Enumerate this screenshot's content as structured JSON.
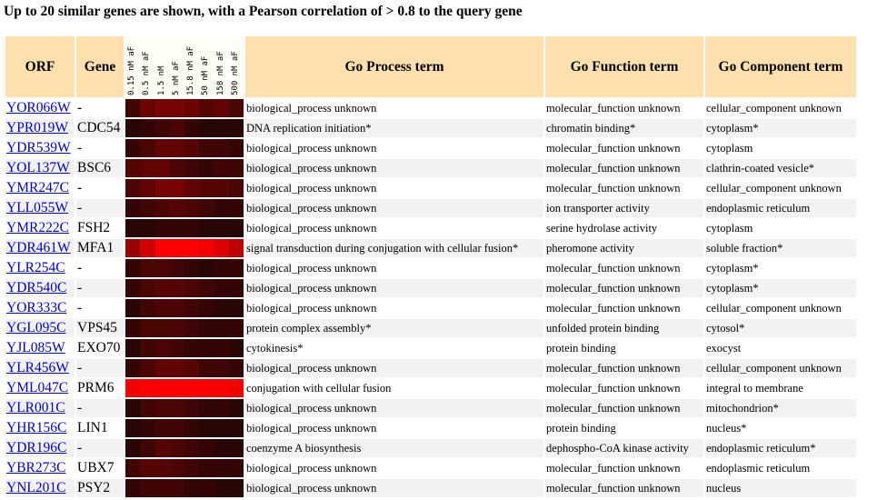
{
  "title": "Up to 20 similar genes are shown, with a Pearson correlation of > 0.8 to the query gene",
  "headers": {
    "orf": "ORF",
    "gene": "Gene",
    "process": "Go Process term",
    "function": "Go Function term",
    "component": "Go Component term"
  },
  "concentrations": [
    "0.15 nM aF",
    "0.5 nM aF",
    "1.5 nM",
    "5 nM aF",
    "15.8 nM aF",
    "50 nM aF",
    "158 nM aF",
    "500 nM aF"
  ],
  "rows": [
    {
      "orf": "YOR066W",
      "gene": "-",
      "process": "biological_process unknown",
      "function": "molecular_function unknown",
      "component": "cellular_component unknown",
      "levels": [
        0.15,
        0.35,
        0.4,
        0.4,
        0.35,
        0.25,
        0.3,
        0.2
      ]
    },
    {
      "orf": "YPR019W",
      "gene": "CDC54",
      "process": "DNA replication initiation*",
      "function": "chromatin binding*",
      "component": "cytoplasm*",
      "levels": [
        0.05,
        0.1,
        0.15,
        0.2,
        0.1,
        0.05,
        0.05,
        0.05
      ]
    },
    {
      "orf": "YDR539W",
      "gene": "-",
      "process": "biological_process unknown",
      "function": "molecular_function unknown",
      "component": "cytoplasm",
      "levels": [
        0.1,
        0.2,
        0.3,
        0.3,
        0.25,
        0.15,
        0.15,
        0.1
      ]
    },
    {
      "orf": "YOL137W",
      "gene": "BSC6",
      "process": "biological_process unknown",
      "function": "molecular_function unknown",
      "component": "clathrin-coated vesicle*",
      "levels": [
        0.25,
        0.3,
        0.3,
        0.2,
        0.15,
        0.1,
        0.15,
        0.15
      ]
    },
    {
      "orf": "YMR247C",
      "gene": "-",
      "process": "biological_process unknown",
      "function": "molecular_function unknown",
      "component": "cellular_component unknown",
      "levels": [
        0.2,
        0.3,
        0.4,
        0.4,
        0.3,
        0.25,
        0.25,
        0.2
      ]
    },
    {
      "orf": "YLL055W",
      "gene": "-",
      "process": "biological_process unknown",
      "function": "ion transporter activity",
      "component": "endoplasmic reticulum",
      "levels": [
        0.1,
        0.15,
        0.2,
        0.25,
        0.2,
        0.15,
        0.1,
        0.1
      ]
    },
    {
      "orf": "YMR222C",
      "gene": "FSH2",
      "process": "biological_process unknown",
      "function": "serine hydrolase activity",
      "component": "cytoplasm",
      "levels": [
        0.05,
        0.05,
        0.1,
        0.1,
        0.1,
        0.05,
        0.05,
        0.05
      ]
    },
    {
      "orf": "YDR461W",
      "gene": "MFA1",
      "process": "signal transduction during conjugation with cellular fusion*",
      "function": "pheromone activity",
      "component": "soluble fraction*",
      "levels": [
        0.55,
        0.8,
        1.0,
        1.0,
        1.0,
        0.95,
        0.85,
        0.7
      ]
    },
    {
      "orf": "YLR254C",
      "gene": "-",
      "process": "biological_process unknown",
      "function": "molecular_function unknown",
      "component": "cytoplasm*",
      "levels": [
        0.1,
        0.2,
        0.2,
        0.15,
        0.1,
        0.05,
        0.1,
        0.1
      ]
    },
    {
      "orf": "YDR540C",
      "gene": "-",
      "process": "biological_process unknown",
      "function": "molecular_function unknown",
      "component": "cytoplasm*",
      "levels": [
        0.1,
        0.2,
        0.25,
        0.25,
        0.2,
        0.15,
        0.1,
        0.1
      ]
    },
    {
      "orf": "YOR333C",
      "gene": "-",
      "process": "biological_process unknown",
      "function": "molecular_function unknown",
      "component": "cellular_component unknown",
      "levels": [
        0.05,
        0.15,
        0.2,
        0.2,
        0.15,
        0.1,
        0.05,
        0.05
      ]
    },
    {
      "orf": "YGL095C",
      "gene": "VPS45",
      "process": "protein complex assembly*",
      "function": "unfolded protein binding",
      "component": "cytosol*",
      "levels": [
        0.1,
        0.2,
        0.2,
        0.2,
        0.15,
        0.1,
        0.1,
        0.1
      ]
    },
    {
      "orf": "YJL085W",
      "gene": "EXO70",
      "process": "cytokinesis*",
      "function": "protein binding",
      "component": "exocyst",
      "levels": [
        0.05,
        0.15,
        0.2,
        0.15,
        0.1,
        0.1,
        0.1,
        0.05
      ]
    },
    {
      "orf": "YLR456W",
      "gene": "-",
      "process": "biological_process unknown",
      "function": "molecular_function unknown",
      "component": "cellular_component unknown",
      "levels": [
        0.1,
        0.2,
        0.3,
        0.3,
        0.25,
        0.15,
        0.15,
        0.1
      ]
    },
    {
      "orf": "YML047C",
      "gene": "PRM6",
      "process": "conjugation with cellular fusion",
      "function": "molecular_function unknown",
      "component": "integral to membrane",
      "levels": [
        0.95,
        1.0,
        1.0,
        1.0,
        1.0,
        1.0,
        1.0,
        0.95
      ]
    },
    {
      "orf": "YLR001C",
      "gene": "-",
      "process": "biological_process unknown",
      "function": "molecular_function unknown",
      "component": "mitochondrion*",
      "levels": [
        0.05,
        0.15,
        0.2,
        0.2,
        0.15,
        0.1,
        0.1,
        0.05
      ]
    },
    {
      "orf": "YHR156C",
      "gene": "LIN1",
      "process": "biological_process unknown",
      "function": "protein binding",
      "component": "nucleus*",
      "levels": [
        0.05,
        0.1,
        0.15,
        0.15,
        0.1,
        0.05,
        0.05,
        0.05
      ]
    },
    {
      "orf": "YDR196C",
      "gene": "-",
      "process": "coenzyme A biosynthesis",
      "function": "dephospho-CoA kinase activity",
      "component": "endoplasmic reticulum*",
      "levels": [
        0.05,
        0.15,
        0.25,
        0.2,
        0.15,
        0.1,
        0.05,
        0.05
      ]
    },
    {
      "orf": "YBR273C",
      "gene": "UBX7",
      "process": "biological_process unknown",
      "function": "molecular_function unknown",
      "component": "endoplasmic reticulum",
      "levels": [
        0.15,
        0.25,
        0.25,
        0.2,
        0.15,
        0.1,
        0.1,
        0.1
      ]
    },
    {
      "orf": "YNL201C",
      "gene": "PSY2",
      "process": "biological_process unknown",
      "function": "molecular_function unknown",
      "component": "nucleus",
      "levels": [
        0.1,
        0.15,
        0.15,
        0.15,
        0.1,
        0.1,
        0.05,
        0.05
      ]
    }
  ]
}
